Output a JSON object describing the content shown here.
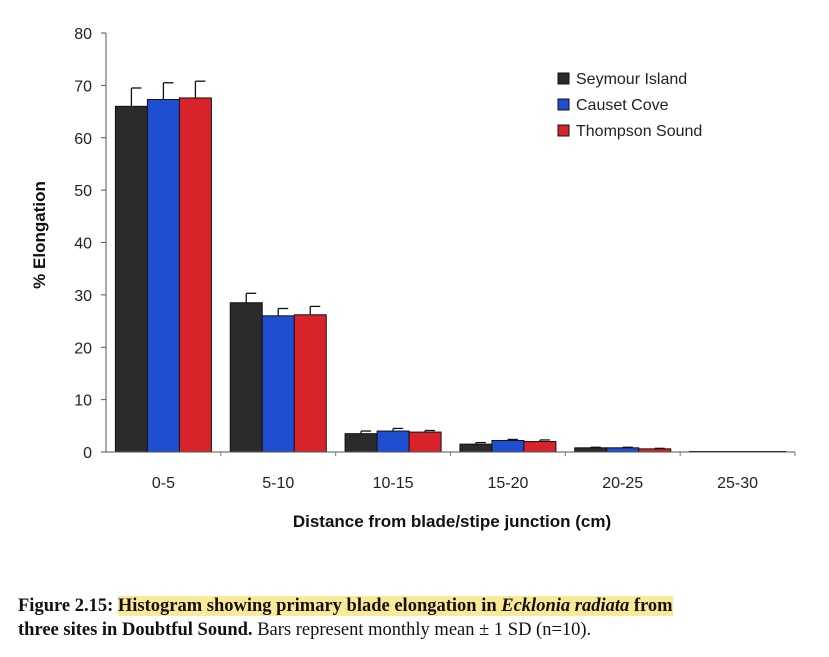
{
  "chart_data": {
    "type": "bar",
    "categories": [
      "0-5",
      "5-10",
      "10-15",
      "15-20",
      "20-25",
      "25-30"
    ],
    "series": [
      {
        "name": "Seymour Island",
        "color": "#2b2b2b",
        "values": [
          66.0,
          28.5,
          3.5,
          1.5,
          0.8,
          0.1
        ],
        "errors": [
          3.5,
          1.8,
          0.5,
          0.3,
          0.1,
          0.0
        ]
      },
      {
        "name": "Causet Cove",
        "color": "#1f4fd0",
        "values": [
          67.3,
          26.0,
          4.0,
          2.2,
          0.8,
          0.1
        ],
        "errors": [
          3.2,
          1.4,
          0.5,
          0.2,
          0.1,
          0.0
        ]
      },
      {
        "name": "Thompson Sound",
        "color": "#d8232a",
        "values": [
          67.6,
          26.2,
          3.8,
          2.0,
          0.6,
          0.1
        ],
        "errors": [
          3.2,
          1.6,
          0.3,
          0.3,
          0.1,
          0.0
        ]
      }
    ],
    "xlabel": "Distance from blade/stipe junction (cm)",
    "ylabel": "% Elongation",
    "ylim": [
      0,
      80
    ],
    "yticks": [
      0,
      10,
      20,
      30,
      40,
      50,
      60,
      70,
      80
    ],
    "grid": false,
    "legend": "top-right"
  },
  "caption": {
    "label": "Figure 2.15:",
    "highlight_pre": "Histogram showing primary blade elongation in ",
    "species": "Ecklonia radiata",
    "highlight_post": " from",
    "line2_bold": "three sites in Doubtful Sound.",
    "line2_rest": " Bars represent monthly mean ± 1 SD (n=10)."
  }
}
